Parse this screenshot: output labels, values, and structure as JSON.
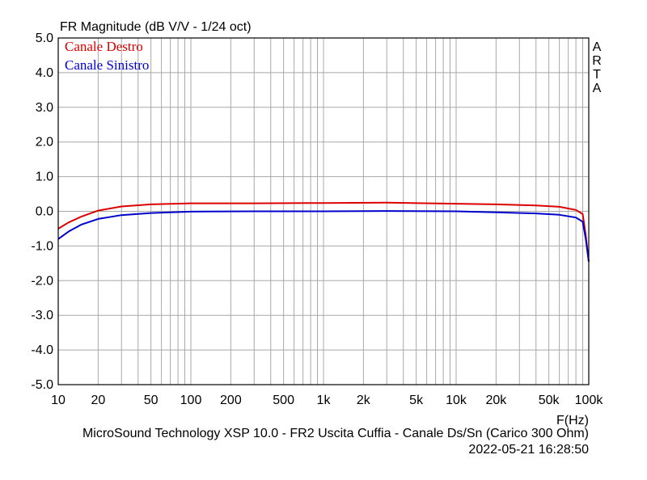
{
  "chart_data": {
    "type": "line",
    "title": "FR Magnitude (dB V/V - 1/24 oct)",
    "xlabel": "F(Hz)",
    "ylabel": "",
    "x_scale": "log",
    "xlim": [
      10,
      100000
    ],
    "ylim": [
      -5.0,
      5.0
    ],
    "grid": true,
    "legend_position": "top-left",
    "watermark": "ARTA",
    "x_tick_labels": [
      {
        "value": 10,
        "label": "10"
      },
      {
        "value": 20,
        "label": "20"
      },
      {
        "value": 50,
        "label": "50"
      },
      {
        "value": 100,
        "label": "100"
      },
      {
        "value": 200,
        "label": "200"
      },
      {
        "value": 500,
        "label": "500"
      },
      {
        "value": 1000,
        "label": "1k"
      },
      {
        "value": 2000,
        "label": "2k"
      },
      {
        "value": 5000,
        "label": "5k"
      },
      {
        "value": 10000,
        "label": "10k"
      },
      {
        "value": 20000,
        "label": "20k"
      },
      {
        "value": 50000,
        "label": "50k"
      },
      {
        "value": 100000,
        "label": "100k"
      }
    ],
    "y_tick_labels": [
      {
        "value": 5,
        "label": "5.0"
      },
      {
        "value": 4,
        "label": "4.0"
      },
      {
        "value": 3,
        "label": "3.0"
      },
      {
        "value": 2,
        "label": "2.0"
      },
      {
        "value": 1,
        "label": "1.0"
      },
      {
        "value": 0,
        "label": "0.0"
      },
      {
        "value": -1,
        "label": "-1.0"
      },
      {
        "value": -2,
        "label": "-2.0"
      },
      {
        "value": -3,
        "label": "-3.0"
      },
      {
        "value": -4,
        "label": "-4.0"
      },
      {
        "value": -5,
        "label": "-5.0"
      }
    ],
    "series": [
      {
        "name": "Canale Destro",
        "color": "#dd0000",
        "x": [
          10,
          12,
          15,
          20,
          30,
          50,
          100,
          300,
          1000,
          3000,
          10000,
          20000,
          40000,
          60000,
          80000,
          90000,
          95000,
          100000
        ],
        "y": [
          -0.5,
          -0.32,
          -0.15,
          0.02,
          0.14,
          0.2,
          0.23,
          0.23,
          0.24,
          0.25,
          0.22,
          0.2,
          0.17,
          0.13,
          0.04,
          -0.08,
          -0.7,
          -1.45
        ]
      },
      {
        "name": "Canale Sinistro",
        "color": "#0000cc",
        "x": [
          10,
          12,
          15,
          20,
          30,
          50,
          100,
          300,
          1000,
          3000,
          10000,
          20000,
          40000,
          60000,
          80000,
          90000,
          95000,
          100000
        ],
        "y": [
          -0.8,
          -0.58,
          -0.38,
          -0.22,
          -0.11,
          -0.05,
          -0.01,
          0.0,
          0.0,
          0.01,
          0.0,
          -0.03,
          -0.06,
          -0.1,
          -0.18,
          -0.3,
          -0.8,
          -1.45
        ]
      }
    ]
  },
  "footer": {
    "description": "MicroSound Technology XSP 10.0 - FR2 Uscita Cuffia - Canale Ds/Sn (Carico 300 Ohm)",
    "timestamp": "2022-05-21  16:28:50"
  }
}
